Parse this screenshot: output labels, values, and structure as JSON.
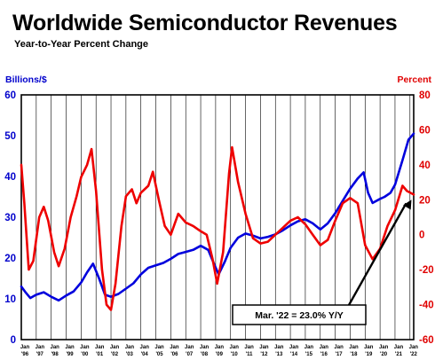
{
  "chart_data": {
    "type": "line",
    "title": "Worldwide Semiconductor Revenues",
    "subtitle": "Year-to-Year Percent Change",
    "left_axis": {
      "label": "Billions/$",
      "range": [
        0,
        60
      ],
      "ticks": [
        "0",
        "10",
        "20",
        "30",
        "40",
        "50",
        "60"
      ],
      "color": "#0000cc"
    },
    "right_axis": {
      "label": "Percent",
      "range": [
        -60,
        80
      ],
      "ticks": [
        "-60",
        "-40",
        "-20",
        "0",
        "20",
        "40",
        "60",
        "80"
      ],
      "color": "#e00000"
    },
    "x_range": [
      1996,
      2022.25
    ],
    "x_ticks": [
      {
        "top": "Jan",
        "bottom": "'96"
      },
      {
        "top": "Jan",
        "bottom": "'97"
      },
      {
        "top": "Jan",
        "bottom": "'98"
      },
      {
        "top": "Jan",
        "bottom": "'99"
      },
      {
        "top": "Jan",
        "bottom": "'00"
      },
      {
        "top": "Jan",
        "bottom": "'01"
      },
      {
        "top": "Jan",
        "bottom": "'02"
      },
      {
        "top": "Jan",
        "bottom": "'03"
      },
      {
        "top": "Jan",
        "bottom": "'04"
      },
      {
        "top": "Jan",
        "bottom": "'05"
      },
      {
        "top": "Jan",
        "bottom": "'06"
      },
      {
        "top": "Jan",
        "bottom": "'07"
      },
      {
        "top": "Jan",
        "bottom": "'08"
      },
      {
        "top": "Jan",
        "bottom": "'09"
      },
      {
        "top": "Jan",
        "bottom": "'10"
      },
      {
        "top": "Jan",
        "bottom": "'11"
      },
      {
        "top": "Jan",
        "bottom": "'12"
      },
      {
        "top": "Jan",
        "bottom": "'13"
      },
      {
        "top": "Jan",
        "bottom": "'14"
      },
      {
        "top": "Jan",
        "bottom": "'15"
      },
      {
        "top": "Jan",
        "bottom": "'16"
      },
      {
        "top": "Jan",
        "bottom": "'17"
      },
      {
        "top": "Jan",
        "bottom": "'18"
      },
      {
        "top": "Jan",
        "bottom": "'19"
      },
      {
        "top": "Jan",
        "bottom": "'20"
      },
      {
        "top": "Jan",
        "bottom": "'21"
      },
      {
        "top": "Jan",
        "bottom": "'22"
      }
    ],
    "grid": "vertical",
    "series": [
      {
        "axis": "left",
        "color": "#0000dd",
        "points": [
          [
            1996.0,
            13.0
          ],
          [
            1996.3,
            11.5
          ],
          [
            1996.6,
            10.2
          ],
          [
            1997.0,
            11.0
          ],
          [
            1997.5,
            11.6
          ],
          [
            1998.0,
            10.5
          ],
          [
            1998.5,
            9.6
          ],
          [
            1999.0,
            10.8
          ],
          [
            1999.5,
            11.8
          ],
          [
            2000.0,
            14.0
          ],
          [
            2000.4,
            16.5
          ],
          [
            2000.8,
            18.6
          ],
          [
            2001.2,
            15.0
          ],
          [
            2001.6,
            11.0
          ],
          [
            2002.0,
            10.5
          ],
          [
            2002.5,
            11.2
          ],
          [
            2003.0,
            12.5
          ],
          [
            2003.5,
            13.8
          ],
          [
            2004.0,
            16.0
          ],
          [
            2004.5,
            17.6
          ],
          [
            2005.0,
            18.2
          ],
          [
            2005.5,
            18.8
          ],
          [
            2006.0,
            19.8
          ],
          [
            2006.5,
            21.0
          ],
          [
            2007.0,
            21.5
          ],
          [
            2007.5,
            22.0
          ],
          [
            2008.0,
            23.0
          ],
          [
            2008.5,
            22.0
          ],
          [
            2008.9,
            18.5
          ],
          [
            2009.2,
            16.0
          ],
          [
            2009.6,
            19.0
          ],
          [
            2010.0,
            22.5
          ],
          [
            2010.5,
            25.0
          ],
          [
            2011.0,
            26.0
          ],
          [
            2011.5,
            25.5
          ],
          [
            2012.0,
            24.8
          ],
          [
            2012.5,
            25.2
          ],
          [
            2013.0,
            25.8
          ],
          [
            2013.5,
            26.8
          ],
          [
            2014.0,
            28.0
          ],
          [
            2014.5,
            29.0
          ],
          [
            2015.0,
            29.5
          ],
          [
            2015.5,
            28.5
          ],
          [
            2016.0,
            27.0
          ],
          [
            2016.5,
            28.5
          ],
          [
            2017.0,
            31.0
          ],
          [
            2017.5,
            34.0
          ],
          [
            2018.0,
            37.0
          ],
          [
            2018.5,
            39.5
          ],
          [
            2018.9,
            41.0
          ],
          [
            2019.2,
            36.0
          ],
          [
            2019.5,
            33.5
          ],
          [
            2020.0,
            34.5
          ],
          [
            2020.3,
            35.0
          ],
          [
            2020.7,
            36.0
          ],
          [
            2021.0,
            38.0
          ],
          [
            2021.5,
            44.0
          ],
          [
            2021.9,
            49.0
          ],
          [
            2022.25,
            50.5
          ]
        ]
      },
      {
        "axis": "right",
        "color": "#ee0000",
        "points": [
          [
            1996.0,
            40.0
          ],
          [
            1996.2,
            18.0
          ],
          [
            1996.5,
            -20.0
          ],
          [
            1996.8,
            -15.0
          ],
          [
            1997.2,
            10.0
          ],
          [
            1997.5,
            16.0
          ],
          [
            1997.8,
            8.0
          ],
          [
            1998.2,
            -10.0
          ],
          [
            1998.5,
            -18.0
          ],
          [
            1998.9,
            -8.0
          ],
          [
            1999.3,
            10.0
          ],
          [
            1999.7,
            22.0
          ],
          [
            2000.0,
            33.0
          ],
          [
            2000.4,
            40.0
          ],
          [
            2000.7,
            49.0
          ],
          [
            2001.0,
            25.0
          ],
          [
            2001.4,
            -20.0
          ],
          [
            2001.7,
            -40.0
          ],
          [
            2002.0,
            -43.0
          ],
          [
            2002.3,
            -28.0
          ],
          [
            2002.7,
            5.0
          ],
          [
            2003.0,
            22.0
          ],
          [
            2003.4,
            26.0
          ],
          [
            2003.7,
            18.0
          ],
          [
            2004.0,
            24.0
          ],
          [
            2004.5,
            28.0
          ],
          [
            2004.8,
            36.0
          ],
          [
            2005.2,
            20.0
          ],
          [
            2005.6,
            5.0
          ],
          [
            2006.0,
            0.0
          ],
          [
            2006.5,
            12.0
          ],
          [
            2007.0,
            7.0
          ],
          [
            2007.5,
            5.0
          ],
          [
            2008.0,
            2.0
          ],
          [
            2008.4,
            0.0
          ],
          [
            2008.8,
            -14.0
          ],
          [
            2009.1,
            -28.0
          ],
          [
            2009.5,
            -10.0
          ],
          [
            2009.9,
            35.0
          ],
          [
            2010.1,
            50.0
          ],
          [
            2010.5,
            30.0
          ],
          [
            2011.0,
            12.0
          ],
          [
            2011.5,
            -2.0
          ],
          [
            2012.0,
            -5.0
          ],
          [
            2012.5,
            -4.0
          ],
          [
            2013.0,
            0.0
          ],
          [
            2013.5,
            4.0
          ],
          [
            2014.0,
            8.0
          ],
          [
            2014.5,
            10.0
          ],
          [
            2015.0,
            6.0
          ],
          [
            2015.5,
            0.0
          ],
          [
            2016.0,
            -6.0
          ],
          [
            2016.5,
            -3.0
          ],
          [
            2017.0,
            8.0
          ],
          [
            2017.5,
            18.0
          ],
          [
            2018.0,
            21.0
          ],
          [
            2018.5,
            18.0
          ],
          [
            2019.0,
            -6.0
          ],
          [
            2019.5,
            -14.0
          ],
          [
            2020.0,
            -8.0
          ],
          [
            2020.5,
            5.0
          ],
          [
            2021.0,
            14.0
          ],
          [
            2021.5,
            28.0
          ],
          [
            2021.8,
            25.0
          ],
          [
            2022.25,
            23.0
          ]
        ]
      }
    ],
    "annotation": {
      "text": "Mar. '22 = 23.0% Y/Y",
      "from": [
        2017.6,
        -45.0
      ],
      "to": [
        2022.1,
        20.0
      ]
    }
  }
}
